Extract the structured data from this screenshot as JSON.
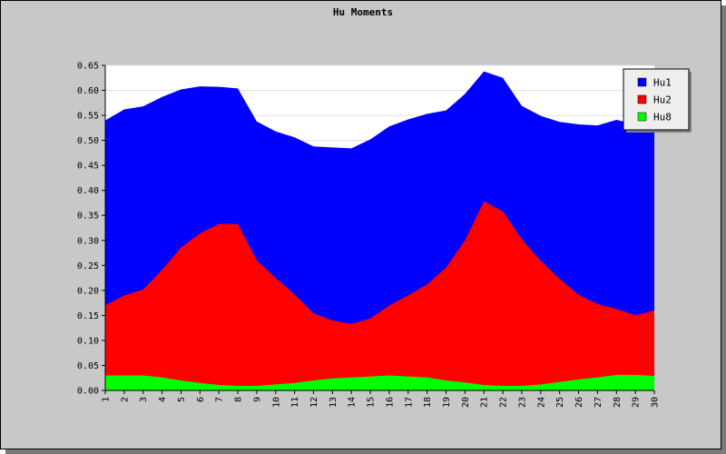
{
  "chart_data": {
    "type": "area",
    "title": "Hu Moments",
    "xlabel": "",
    "ylabel": "",
    "x": [
      1,
      2,
      3,
      4,
      5,
      6,
      7,
      8,
      9,
      10,
      11,
      12,
      13,
      14,
      15,
      16,
      17,
      18,
      19,
      20,
      21,
      22,
      23,
      24,
      25,
      26,
      27,
      28,
      29,
      30
    ],
    "ylim": [
      0,
      0.65
    ],
    "y_ticks": [
      "0.00",
      "0.05",
      "0.10",
      "0.15",
      "0.20",
      "0.25",
      "0.30",
      "0.35",
      "0.40",
      "0.45",
      "0.50",
      "0.55",
      "0.60",
      "0.65"
    ],
    "grid": true,
    "legend_position": "top-right",
    "series": [
      {
        "name": "Hu1",
        "color": "#0000ff",
        "values": [
          0.54,
          0.562,
          0.568,
          0.587,
          0.602,
          0.608,
          0.607,
          0.604,
          0.538,
          0.518,
          0.506,
          0.488,
          0.486,
          0.484,
          0.502,
          0.528,
          0.542,
          0.553,
          0.56,
          0.593,
          0.638,
          0.625,
          0.569,
          0.549,
          0.537,
          0.532,
          0.53,
          0.541,
          0.532,
          0.535
        ]
      },
      {
        "name": "Hu2",
        "color": "#ff0000",
        "values": [
          0.17,
          0.19,
          0.202,
          0.241,
          0.286,
          0.314,
          0.333,
          0.333,
          0.26,
          0.225,
          0.192,
          0.154,
          0.14,
          0.133,
          0.144,
          0.17,
          0.19,
          0.212,
          0.246,
          0.3,
          0.378,
          0.358,
          0.302,
          0.259,
          0.223,
          0.191,
          0.173,
          0.163,
          0.15,
          0.16
        ]
      },
      {
        "name": "Hu8",
        "color": "#00ff00",
        "values": [
          0.03,
          0.03,
          0.03,
          0.026,
          0.02,
          0.015,
          0.011,
          0.009,
          0.009,
          0.012,
          0.015,
          0.02,
          0.024,
          0.026,
          0.028,
          0.03,
          0.028,
          0.026,
          0.02,
          0.016,
          0.011,
          0.009,
          0.009,
          0.012,
          0.017,
          0.022,
          0.026,
          0.031,
          0.031,
          0.029
        ]
      }
    ]
  }
}
